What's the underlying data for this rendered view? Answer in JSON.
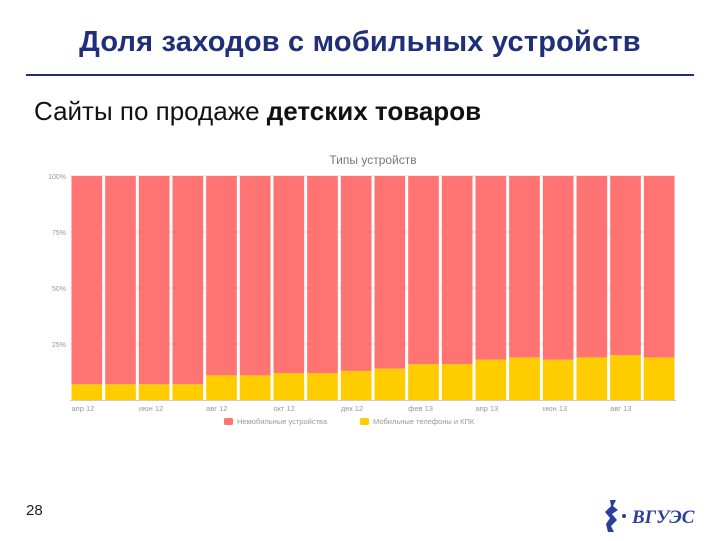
{
  "slide": {
    "title": "Доля заходов с мобильных устройств",
    "subtitle_plain": "Сайты по продаже ",
    "subtitle_bold": "детских товаров",
    "page_number": "28",
    "logo_text": "ВГУЭС"
  },
  "colors": {
    "title": "#1f2f7a",
    "non_mobile": "#ff7373",
    "mobile_phone": "#ffcc00"
  },
  "chart_data": {
    "type": "bar",
    "stacked": true,
    "title": "Типы устройств",
    "yticks": [
      "100%",
      "75%",
      "50%",
      "25%"
    ],
    "ylim": [
      0,
      100
    ],
    "x_tick_labels": [
      "апр 12",
      "июн 12",
      "авг 12",
      "окт 12",
      "дек 12",
      "фев 13",
      "апр 13",
      "июн 13",
      "авг 13"
    ],
    "bar_count": 18,
    "series": [
      {
        "name": "Немобильные устройства",
        "color": "#ff7373",
        "values": [
          93,
          93,
          93,
          93,
          89,
          89,
          88,
          88,
          87,
          86,
          84,
          84,
          82,
          81,
          82,
          81,
          80,
          81
        ]
      },
      {
        "name": "Мобильные телефоны и КПК",
        "color": "#ffcc00",
        "values": [
          7,
          7,
          7,
          7,
          11,
          11,
          12,
          12,
          13,
          14,
          16,
          16,
          18,
          19,
          18,
          19,
          20,
          19
        ]
      }
    ],
    "legend_position": "bottom"
  }
}
